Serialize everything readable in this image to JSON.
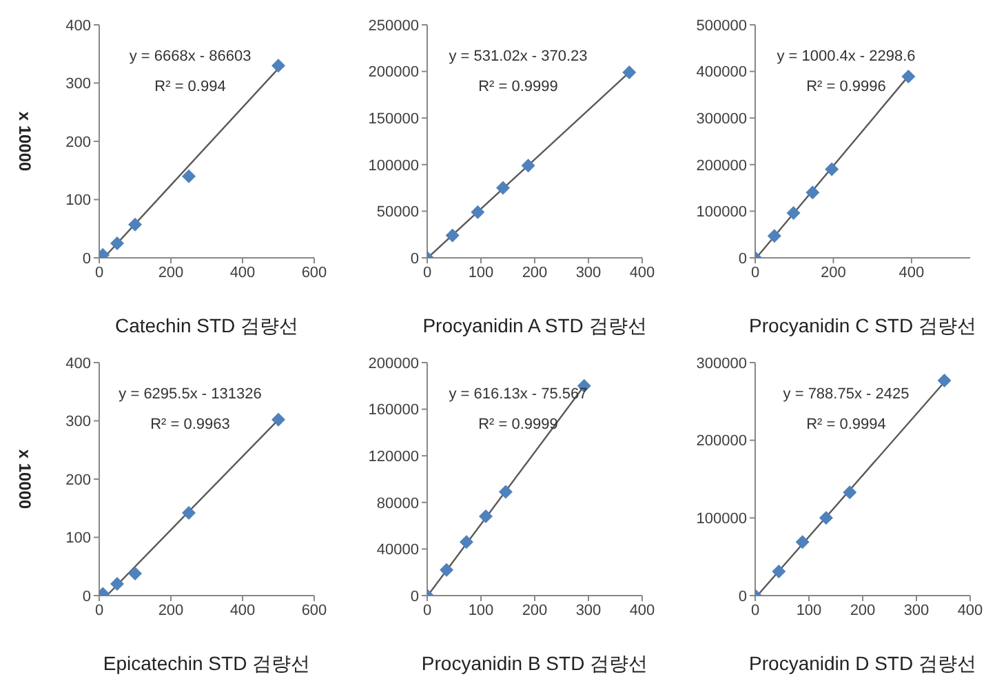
{
  "chart_data": [
    {
      "type": "scatter",
      "xlabel": "Catechin STD 검량선",
      "ylabel": "x 10000",
      "xlim": [
        0,
        600
      ],
      "xticks": [
        0,
        200,
        400,
        600
      ],
      "ylim": [
        0,
        400
      ],
      "yticks": [
        0,
        100,
        200,
        300,
        400
      ],
      "annotations": [
        "y = 6668x  - 86603",
        "R² = 0.994"
      ],
      "series": [
        {
          "color": "#4f81bd",
          "marker": "diamond",
          "x": [
            10,
            50,
            100,
            250,
            500
          ],
          "values": [
            5,
            25,
            57,
            140,
            330
          ]
        },
        {
          "type": "line",
          "marker": "none",
          "color": "#595959",
          "x": [
            13,
            500
          ],
          "values": [
            0,
            325
          ]
        }
      ]
    },
    {
      "type": "scatter",
      "xlabel": "Procyanidin A STD 검량선",
      "xlim": [
        0,
        400
      ],
      "xticks": [
        0,
        100,
        200,
        300,
        400
      ],
      "ylim": [
        0,
        250000
      ],
      "yticks": [
        0,
        50000,
        100000,
        150000,
        200000,
        250000
      ],
      "annotations": [
        "y = 531.02x  - 370.23",
        "R² = 0.9999"
      ],
      "series": [
        {
          "color": "#4f81bd",
          "marker": "diamond",
          "x": [
            0,
            47,
            94,
            141,
            188,
            376
          ],
          "values": [
            0,
            24000,
            49000,
            75000,
            99000,
            199000
          ]
        },
        {
          "type": "line",
          "marker": "none",
          "color": "#595959",
          "x": [
            1,
            376
          ],
          "values": [
            0,
            199000
          ]
        }
      ]
    },
    {
      "type": "scatter",
      "xlabel": "Procyanidin C STD 검량선",
      "xlim": [
        0,
        550
      ],
      "xticks": [
        0,
        200,
        400
      ],
      "ylim": [
        0,
        500000
      ],
      "yticks": [
        0,
        100000,
        200000,
        300000,
        400000,
        500000
      ],
      "annotations": [
        "y = 1000.4x  - 2298.6",
        "R² = 0.9996"
      ],
      "series": [
        {
          "color": "#4f81bd",
          "marker": "diamond",
          "x": [
            0,
            49,
            98,
            147,
            196,
            392
          ],
          "values": [
            0,
            47000,
            96000,
            140000,
            190000,
            389000
          ]
        },
        {
          "type": "line",
          "marker": "none",
          "color": "#595959",
          "x": [
            3,
            392
          ],
          "values": [
            0,
            390000
          ]
        }
      ]
    },
    {
      "type": "scatter",
      "xlabel": "Epicatechin STD 검량선",
      "ylabel": "x 10000",
      "xlim": [
        0,
        600
      ],
      "xticks": [
        0,
        200,
        400,
        600
      ],
      "ylim": [
        0,
        400
      ],
      "yticks": [
        0,
        100,
        200,
        300,
        400
      ],
      "annotations": [
        "y = 6295.5x  - 131326",
        "R² = 0.9963"
      ],
      "series": [
        {
          "color": "#4f81bd",
          "marker": "diamond",
          "x": [
            10,
            50,
            100,
            250,
            500
          ],
          "values": [
            3,
            20,
            38,
            142,
            302
          ]
        },
        {
          "type": "line",
          "marker": "none",
          "color": "#595959",
          "x": [
            21,
            500
          ],
          "values": [
            0,
            302
          ]
        }
      ]
    },
    {
      "type": "scatter",
      "xlabel": "Procyanidin B STD 검량선",
      "xlim": [
        0,
        400
      ],
      "xticks": [
        0,
        100,
        200,
        300,
        400
      ],
      "ylim": [
        0,
        200000
      ],
      "yticks": [
        0,
        40000,
        80000,
        120000,
        160000,
        200000
      ],
      "annotations": [
        "y = 616.13x  - 75.567",
        "R² = 0.9999"
      ],
      "series": [
        {
          "color": "#4f81bd",
          "marker": "diamond",
          "x": [
            0,
            36,
            73,
            109,
            146,
            292
          ],
          "values": [
            0,
            22000,
            46000,
            68000,
            89000,
            180000
          ]
        },
        {
          "type": "line",
          "marker": "none",
          "color": "#595959",
          "x": [
            1,
            292
          ],
          "values": [
            0,
            180000
          ]
        }
      ]
    },
    {
      "type": "scatter",
      "xlabel": "Procyanidin D STD 검량선",
      "xlim": [
        0,
        400
      ],
      "xticks": [
        0,
        100,
        200,
        300,
        400
      ],
      "ylim": [
        0,
        300000
      ],
      "yticks": [
        0,
        100000,
        200000,
        300000
      ],
      "annotations": [
        "y = 788.75x  - 2425",
        "R² = 0.9994"
      ],
      "series": [
        {
          "color": "#4f81bd",
          "marker": "diamond",
          "x": [
            0,
            44,
            88,
            132,
            176,
            352
          ],
          "values": [
            0,
            31000,
            69000,
            100000,
            133000,
            277000
          ]
        },
        {
          "type": "line",
          "marker": "none",
          "color": "#595959",
          "x": [
            4,
            352
          ],
          "values": [
            0,
            275000
          ]
        }
      ]
    }
  ]
}
